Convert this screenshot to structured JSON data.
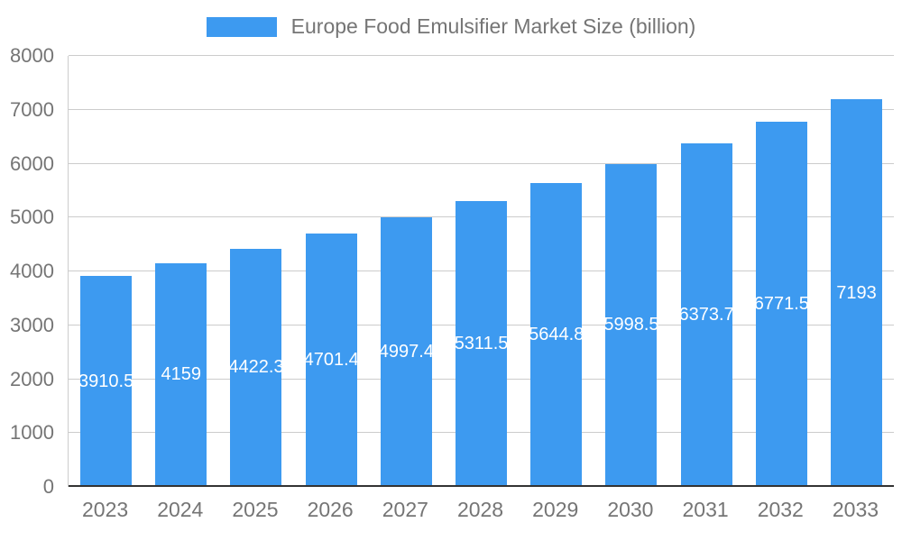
{
  "chart_data": {
    "type": "bar",
    "title": "Europe Food Emulsifier Market Size (billion)",
    "categories": [
      "2023",
      "2024",
      "2025",
      "2026",
      "2027",
      "2028",
      "2029",
      "2030",
      "2031",
      "2032",
      "2033"
    ],
    "values": [
      3910.5,
      4159,
      4422.3,
      4701.4,
      4997.4,
      5311.5,
      5644.8,
      5998.5,
      6373.7,
      6771.5,
      7193
    ],
    "value_labels": [
      "3910.5",
      "4159",
      "4422.3",
      "4701.4",
      "4997.4",
      "5311.5",
      "5644.8",
      "5998.5",
      "6373.7",
      "6771.5",
      "7193"
    ],
    "xlabel": "",
    "ylabel": "",
    "ylim": [
      0,
      8000
    ],
    "yticks": [
      0,
      1000,
      2000,
      3000,
      4000,
      5000,
      6000,
      7000,
      8000
    ],
    "grid": true,
    "legend_position": "top",
    "colors": {
      "bar": "#3d9af0",
      "bar_value_label": "#ffffff",
      "axis_text": "#757575",
      "gridline": "#cccccc",
      "baseline": "#333333"
    }
  }
}
